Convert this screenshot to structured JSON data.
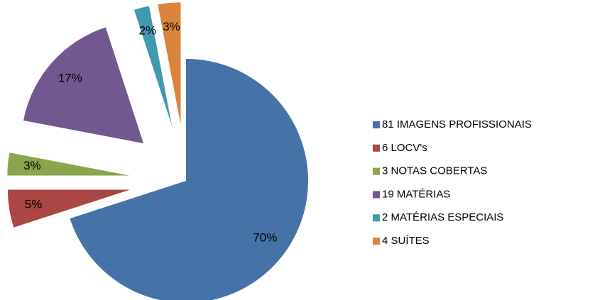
{
  "chart_data": {
    "type": "pie",
    "categories": [
      "81 IMAGENS PROFISSIONAIS",
      "6 LOCV's",
      "3 NOTAS COBERTAS",
      "19 MATÉRIAS",
      "2 MATÉRIAS ESPECIAIS",
      "4 SUÍTES"
    ],
    "values": [
      70,
      5,
      3,
      17,
      2,
      3
    ],
    "value_labels": [
      "70%",
      "5%",
      "3%",
      "17%",
      "2%",
      "3%"
    ],
    "colors": [
      "#4572a7",
      "#aa4643",
      "#89a54e",
      "#71588f",
      "#4198af",
      "#db843d"
    ],
    "legend": "right"
  }
}
